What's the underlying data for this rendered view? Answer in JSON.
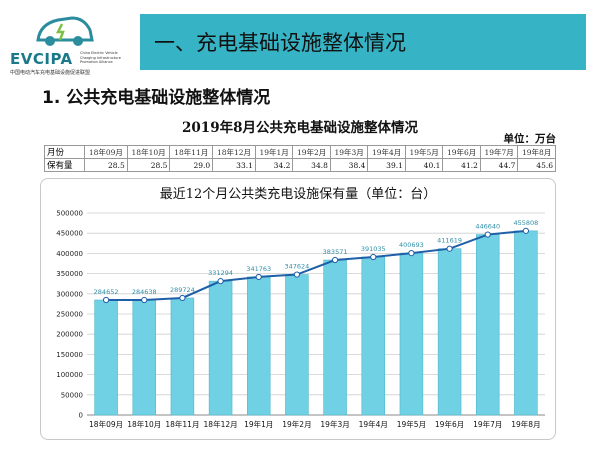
{
  "logo": {
    "name": "EVCIPA",
    "side_text": "China Electric Vehicle Charging Infrastructure Promotion Alliance",
    "cn_text": "中国电动汽车充电基础设施促进联盟"
  },
  "header": {
    "title": "一、充电基础设施整体情况"
  },
  "section": {
    "heading": "1. 公共充电基础设施整体情况"
  },
  "table": {
    "title": "2019年8月公共充电基础设施整体情况",
    "unit": "单位：万台",
    "row_labels": {
      "month": "月份",
      "value": "保有量"
    },
    "months": [
      "18年09月",
      "18年10月",
      "18年11月",
      "18年12月",
      "19年1月",
      "19年2月",
      "19年3月",
      "19年4月",
      "19年5月",
      "19年6月",
      "19年7月",
      "19年8月"
    ],
    "values": [
      "28.5",
      "28.5",
      "29.0",
      "33.1",
      "34.2",
      "34.8",
      "38.4",
      "39.1",
      "40.1",
      "41.2",
      "44.7",
      "45.6"
    ]
  },
  "colors": {
    "title_bar": "#36b3c4",
    "bar": "#6fd1e3",
    "line": "#1f5fa8"
  },
  "chart_data": {
    "type": "bar",
    "title": "最近12个月公共类充电设施保有量（单位：台）",
    "categories": [
      "18年09月",
      "18年10月",
      "18年11月",
      "18年12月",
      "19年1月",
      "19年2月",
      "19年3月",
      "19年4月",
      "19年5月",
      "19年6月",
      "19年7月",
      "19年8月"
    ],
    "values": [
      284652,
      284638,
      289724,
      331294,
      341763,
      347624,
      383571,
      391035,
      400693,
      411619,
      446640,
      455808
    ],
    "ylim": [
      0,
      500000
    ],
    "yticks": [
      0,
      50000,
      100000,
      150000,
      200000,
      250000,
      300000,
      350000,
      400000,
      450000,
      500000
    ],
    "grid": true,
    "overlay_line": true
  }
}
